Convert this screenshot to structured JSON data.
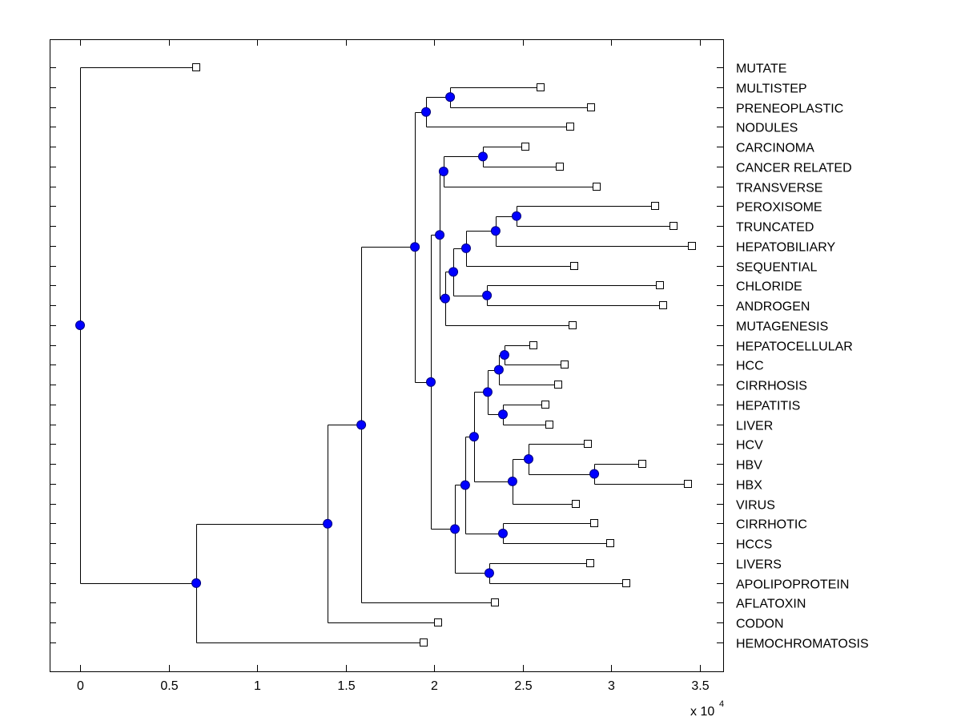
{
  "chart_data": {
    "type": "dendrogram",
    "title": "",
    "xlabel": "",
    "ylabel": "",
    "x_exponent_label": "x 10",
    "x_exponent_power": "4",
    "xlim": [
      -0.172,
      3.632
    ],
    "xticks": [
      0,
      0.5,
      1,
      1.5,
      2,
      2.5,
      3,
      3.5
    ],
    "xtick_labels": [
      "0",
      "0.5",
      "1",
      "1.5",
      "2",
      "2.5",
      "3",
      "3.5"
    ],
    "grid": false,
    "colors": {
      "node_fill": "#0000ff",
      "leaf_fill": "#ffffff",
      "line": "#000000"
    },
    "leaves": [
      {
        "label": "MUTATE",
        "x": 0.656
      },
      {
        "label": "MULTISTEP",
        "x": 2.601
      },
      {
        "label": "PRENEOPLASTIC",
        "x": 2.886
      },
      {
        "label": "NODULES",
        "x": 2.768
      },
      {
        "label": "CARCINOMA",
        "x": 2.515
      },
      {
        "label": "CANCER RELATED",
        "x": 2.709
      },
      {
        "label": "TRANSVERSE",
        "x": 2.917
      },
      {
        "label": "PEROXISOME",
        "x": 3.247
      },
      {
        "label": "TRUNCATED",
        "x": 3.351
      },
      {
        "label": "HEPATOBILIARY",
        "x": 3.455
      },
      {
        "label": "SEQUENTIAL",
        "x": 2.791
      },
      {
        "label": "CHLORIDE",
        "x": 3.275
      },
      {
        "label": "ANDROGEN",
        "x": 3.293
      },
      {
        "label": "MUTAGENESIS",
        "x": 2.782
      },
      {
        "label": "HEPATOCELLULAR",
        "x": 2.56
      },
      {
        "label": "HCC",
        "x": 2.736
      },
      {
        "label": "CIRRHOSIS",
        "x": 2.7
      },
      {
        "label": "HEPATITIS",
        "x": 2.628
      },
      {
        "label": "LIVER",
        "x": 2.65
      },
      {
        "label": "HCV",
        "x": 2.867
      },
      {
        "label": "HBV",
        "x": 3.175
      },
      {
        "label": "HBX",
        "x": 3.433
      },
      {
        "label": "VIRUS",
        "x": 2.8
      },
      {
        "label": "CIRRHOTIC",
        "x": 2.904
      },
      {
        "label": "HCCS",
        "x": 2.994
      },
      {
        "label": "LIVERS",
        "x": 2.881
      },
      {
        "label": "APOLIPOPROTEIN",
        "x": 3.085
      },
      {
        "label": "AFLATOXIN",
        "x": 2.343
      },
      {
        "label": "CODON",
        "x": 2.022
      },
      {
        "label": "HEMOCHROMATOSIS",
        "x": 1.94
      }
    ],
    "tree": {
      "x": 0.0,
      "children": [
        {
          "leaf": 0
        },
        {
          "x": 0.656,
          "children": [
            {
              "x": 1.398,
              "children": [
                {
                  "x": 1.588,
                  "children": [
                    {
                      "x": 1.891,
                      "children": [
                        {
                          "x": 1.954,
                          "children": [
                            {
                              "x": 2.09,
                              "children": [
                                {
                                  "leaf": 1
                                },
                                {
                                  "leaf": 2
                                }
                              ]
                            },
                            {
                              "leaf": 3
                            }
                          ]
                        },
                        {
                          "x": 1.981,
                          "children": [
                            {
                              "x": 2.031,
                              "children": [
                                {
                                  "x": 2.053,
                                  "children": [
                                    {
                                      "x": 2.275,
                                      "children": [
                                        {
                                          "leaf": 4
                                        },
                                        {
                                          "leaf": 5
                                        }
                                      ]
                                    },
                                    {
                                      "leaf": 6
                                    }
                                  ]
                                },
                                {
                                  "x": 2.062,
                                  "children": [
                                    {
                                      "x": 2.108,
                                      "children": [
                                        {
                                          "x": 2.18,
                                          "children": [
                                            {
                                              "x": 2.347,
                                              "children": [
                                                {
                                                  "x": 2.465,
                                                  "children": [
                                                    {
                                                      "leaf": 7
                                                    },
                                                    {
                                                      "leaf": 8
                                                    }
                                                  ]
                                                },
                                                {
                                                  "leaf": 9
                                                }
                                              ]
                                            },
                                            {
                                              "leaf": 10
                                            }
                                          ]
                                        },
                                        {
                                          "x": 2.298,
                                          "children": [
                                            {
                                              "leaf": 11
                                            },
                                            {
                                              "leaf": 12
                                            }
                                          ]
                                        }
                                      ]
                                    },
                                    {
                                      "leaf": 13
                                    }
                                  ]
                                }
                              ]
                            },
                            {
                              "x": 2.117,
                              "children": [
                                {
                                  "x": 2.175,
                                  "children": [
                                    {
                                      "x": 2.225,
                                      "children": [
                                        {
                                          "x": 2.302,
                                          "children": [
                                            {
                                              "x": 2.365,
                                              "children": [
                                                {
                                                  "x": 2.397,
                                                  "children": [
                                                    {
                                                      "leaf": 14
                                                    },
                                                    {
                                                      "leaf": 15
                                                    }
                                                  ]
                                                },
                                                {
                                                  "leaf": 16
                                                }
                                              ]
                                            },
                                            {
                                              "x": 2.388,
                                              "children": [
                                                {
                                                  "leaf": 17
                                                },
                                                {
                                                  "leaf": 18
                                                }
                                              ]
                                            }
                                          ]
                                        },
                                        {
                                          "x": 2.442,
                                          "children": [
                                            {
                                              "x": 2.533,
                                              "children": [
                                                {
                                                  "leaf": 19
                                                },
                                                {
                                                  "x": 2.904,
                                                  "children": [
                                                    {
                                                      "leaf": 20
                                                    },
                                                    {
                                                      "leaf": 21
                                                    }
                                                  ]
                                                }
                                              ]
                                            },
                                            {
                                              "leaf": 22
                                            }
                                          ]
                                        }
                                      ]
                                    },
                                    {
                                      "x": 2.388,
                                      "children": [
                                        {
                                          "leaf": 23
                                        },
                                        {
                                          "leaf": 24
                                        }
                                      ]
                                    }
                                  ]
                                },
                                {
                                  "x": 2.311,
                                  "children": [
                                    {
                                      "leaf": 25
                                    },
                                    {
                                      "leaf": 26
                                    }
                                  ]
                                }
                              ]
                            }
                          ]
                        }
                      ]
                    },
                    {
                      "leaf": 27
                    }
                  ]
                },
                {
                  "leaf": 28
                }
              ]
            },
            {
              "leaf": 29
            }
          ]
        }
      ]
    }
  }
}
